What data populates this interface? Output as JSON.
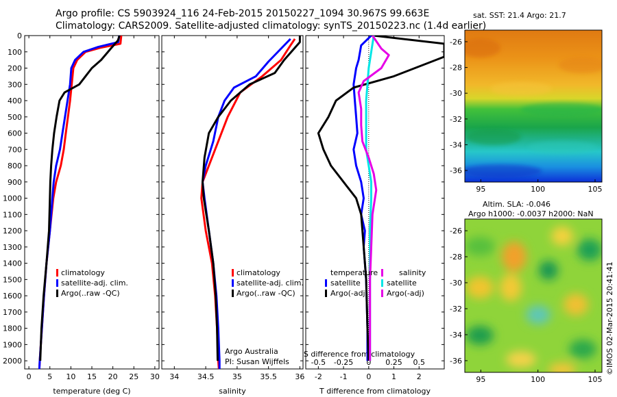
{
  "title": {
    "line1": "Argo profile: CS 5903924_116 24-Feb-2015 20150227_1094 30.967S 99.663E",
    "line2": "Climatology: CARS2009. Satellite-adjusted climatology: synTS_20150223.nc (1.4d earlier)"
  },
  "colors": {
    "climatology": "#ff0000",
    "satellite": "#0000ff",
    "argo": "#000000",
    "sat_salinity": "#00e6e6",
    "argo_salinity": "#e600e6"
  },
  "chart_data": [
    {
      "type": "line",
      "xlabel": "temperature (deg C)",
      "xlim": [
        -1,
        31
      ],
      "xticks": [
        "0",
        "5",
        "10",
        "15",
        "20",
        "25",
        "30"
      ],
      "ylim": [
        2050,
        0
      ],
      "yticks": [
        "0",
        "100",
        "200",
        "300",
        "400",
        "500",
        "600",
        "700",
        "800",
        "900",
        "1000",
        "1100",
        "1200",
        "1300",
        "1400",
        "1500",
        "1600",
        "1700",
        "1800",
        "1900",
        "2000"
      ],
      "legend": [
        "climatology",
        "satellite-adj. clim.",
        "Argo(..raw -QC)"
      ],
      "series": [
        {
          "name": "climatology",
          "color": "#ff0000",
          "points": [
            [
              22,
              0
            ],
            [
              21.8,
              50
            ],
            [
              17,
              75
            ],
            [
              13.5,
              100
            ],
            [
              11.5,
              150
            ],
            [
              10.6,
              200
            ],
            [
              10.2,
              300
            ],
            [
              9.8,
              400
            ],
            [
              9.3,
              500
            ],
            [
              8.8,
              600
            ],
            [
              8.3,
              700
            ],
            [
              7.6,
              800
            ],
            [
              6.5,
              900
            ],
            [
              5.8,
              1000
            ],
            [
              5.0,
              1200
            ],
            [
              4.2,
              1400
            ],
            [
              3.6,
              1600
            ],
            [
              3.1,
              1800
            ],
            [
              2.6,
              2000
            ],
            [
              2.5,
              2050
            ]
          ]
        },
        {
          "name": "satellite-adj. clim.",
          "color": "#0000ff",
          "points": [
            [
              21.5,
              0
            ],
            [
              21.3,
              40
            ],
            [
              16.5,
              70
            ],
            [
              13,
              100
            ],
            [
              11,
              150
            ],
            [
              10.1,
              200
            ],
            [
              9.8,
              300
            ],
            [
              9.2,
              400
            ],
            [
              8.6,
              500
            ],
            [
              8.0,
              600
            ],
            [
              7.4,
              700
            ],
            [
              6.5,
              800
            ],
            [
              5.9,
              900
            ],
            [
              5.6,
              1000
            ],
            [
              5.0,
              1200
            ],
            [
              4.2,
              1400
            ],
            [
              3.6,
              1600
            ],
            [
              3.1,
              1800
            ],
            [
              2.6,
              2000
            ],
            [
              2.5,
              2050
            ]
          ]
        },
        {
          "name": "Argo(..raw -QC)",
          "color": "#000000",
          "points": [
            [
              21.6,
              0
            ],
            [
              21.2,
              30
            ],
            [
              19.5,
              80
            ],
            [
              17.2,
              150
            ],
            [
              15,
              200
            ],
            [
              12,
              300
            ],
            [
              8.5,
              350
            ],
            [
              7.3,
              400
            ],
            [
              6.6,
              500
            ],
            [
              6.0,
              600
            ],
            [
              5.6,
              700
            ],
            [
              5.3,
              800
            ],
            [
              5.1,
              900
            ],
            [
              5.0,
              1000
            ],
            [
              4.8,
              1200
            ],
            [
              4.2,
              1400
            ],
            [
              3.5,
              1600
            ],
            [
              3.0,
              1800
            ],
            [
              2.7,
              2000
            ]
          ]
        }
      ]
    },
    {
      "type": "line",
      "xlabel": "salinity",
      "xlim": [
        33.8,
        36.05
      ],
      "xticks": [
        "34",
        "34.5",
        "35",
        "35.5",
        "36"
      ],
      "ylim": [
        2050,
        0
      ],
      "legend": [
        "climatology",
        "satellite-adj. clim.",
        "Argo(..raw -QC)"
      ],
      "annotations": [
        "Argo Australia",
        "PI: Susan Wijffels"
      ],
      "series": [
        {
          "name": "climatology",
          "color": "#ff0000",
          "points": [
            [
              35.92,
              20
            ],
            [
              35.85,
              60
            ],
            [
              35.7,
              150
            ],
            [
              35.4,
              250
            ],
            [
              35.05,
              350
            ],
            [
              34.85,
              500
            ],
            [
              34.7,
              650
            ],
            [
              34.55,
              800
            ],
            [
              34.45,
              900
            ],
            [
              34.43,
              1000
            ],
            [
              34.5,
              1200
            ],
            [
              34.6,
              1400
            ],
            [
              34.65,
              1600
            ],
            [
              34.68,
              1800
            ],
            [
              34.7,
              2000
            ],
            [
              34.71,
              2050
            ]
          ]
        },
        {
          "name": "satellite-adj. clim.",
          "color": "#0000ff",
          "points": [
            [
              35.85,
              20
            ],
            [
              35.7,
              80
            ],
            [
              35.5,
              160
            ],
            [
              35.3,
              250
            ],
            [
              34.95,
              320
            ],
            [
              34.8,
              400
            ],
            [
              34.7,
              500
            ],
            [
              34.62,
              650
            ],
            [
              34.5,
              800
            ],
            [
              34.45,
              900
            ],
            [
              34.48,
              1000
            ],
            [
              34.55,
              1200
            ],
            [
              34.62,
              1400
            ],
            [
              34.67,
              1600
            ],
            [
              34.7,
              1800
            ],
            [
              34.72,
              2000
            ],
            [
              34.72,
              2050
            ]
          ]
        },
        {
          "name": "Argo(..raw -QC)",
          "color": "#000000",
          "points": [
            [
              36.0,
              0
            ],
            [
              36.0,
              40
            ],
            [
              35.75,
              150
            ],
            [
              35.6,
              230
            ],
            [
              35.2,
              300
            ],
            [
              34.9,
              400
            ],
            [
              34.7,
              500
            ],
            [
              34.55,
              600
            ],
            [
              34.48,
              750
            ],
            [
              34.45,
              900
            ],
            [
              34.47,
              1000
            ],
            [
              34.55,
              1200
            ],
            [
              34.62,
              1400
            ],
            [
              34.66,
              1600
            ],
            [
              34.68,
              1800
            ],
            [
              34.69,
              2000
            ]
          ]
        }
      ]
    },
    {
      "type": "line",
      "xlabel": "T difference from climatology",
      "xlabel_top": "S difference from climatology",
      "xlim": [
        -2.5,
        3.0
      ],
      "xticks": [
        "-2",
        "-1",
        "0",
        "1",
        "2"
      ],
      "xticks_salinity": [
        "-0.5",
        "-0.25",
        "0",
        "0.25",
        "0.5"
      ],
      "ylim": [
        2050,
        0
      ],
      "legend_temperature": [
        "temperature",
        "satellite",
        "Argo(-adj)"
      ],
      "legend_salinity": [
        "salinity",
        "satellite",
        "Argo(-adj)"
      ],
      "series": [
        {
          "name": "satellite",
          "color": "#0000ff",
          "points": [
            [
              0.1,
              0
            ],
            [
              -0.3,
              60
            ],
            [
              -0.4,
              150
            ],
            [
              -0.5,
              200
            ],
            [
              -0.6,
              300
            ],
            [
              -0.55,
              400
            ],
            [
              -0.5,
              500
            ],
            [
              -0.45,
              600
            ],
            [
              -0.6,
              700
            ],
            [
              -0.5,
              800
            ],
            [
              -0.3,
              900
            ],
            [
              -0.2,
              1000
            ],
            [
              -0.3,
              1100
            ],
            [
              -0.15,
              1200
            ],
            [
              -0.2,
              1300
            ],
            [
              -0.1,
              1500
            ],
            [
              -0.05,
              1800
            ],
            [
              -0.05,
              2000
            ]
          ]
        },
        {
          "name": "Argo(-adj)",
          "color": "#000000",
          "points": [
            [
              0.2,
              0
            ],
            [
              3.0,
              50
            ],
            [
              3.0,
              130
            ],
            [
              1.0,
              250
            ],
            [
              -0.6,
              320
            ],
            [
              -1.3,
              400
            ],
            [
              -1.6,
              500
            ],
            [
              -2.0,
              600
            ],
            [
              -1.8,
              700
            ],
            [
              -1.5,
              800
            ],
            [
              -1.0,
              900
            ],
            [
              -0.5,
              1000
            ],
            [
              -0.3,
              1100
            ],
            [
              -0.2,
              1300
            ],
            [
              -0.1,
              1500
            ],
            [
              -0.05,
              1800
            ],
            [
              0,
              2000
            ]
          ]
        },
        {
          "name": "satellite",
          "color": "#00e6e6",
          "points": [
            [
              0.2,
              0
            ],
            [
              0.1,
              100
            ],
            [
              0,
              200
            ],
            [
              -0.05,
              300
            ],
            [
              -0.1,
              400
            ],
            [
              -0.1,
              500
            ],
            [
              -0.1,
              600
            ],
            [
              -0.1,
              700
            ],
            [
              0,
              800
            ],
            [
              0.1,
              900
            ],
            [
              0.1,
              1000
            ],
            [
              0.05,
              1200
            ],
            [
              0.05,
              1500
            ],
            [
              0.05,
              1800
            ],
            [
              0.05,
              2000
            ]
          ]
        },
        {
          "name": "Argo(-adj)",
          "color": "#e600e6",
          "points": [
            [
              0.15,
              0
            ],
            [
              0.5,
              80
            ],
            [
              0.8,
              120
            ],
            [
              0.5,
              200
            ],
            [
              -0.2,
              280
            ],
            [
              -0.4,
              350
            ],
            [
              -0.3,
              450
            ],
            [
              -0.3,
              550
            ],
            [
              -0.25,
              650
            ],
            [
              0,
              750
            ],
            [
              0.2,
              850
            ],
            [
              0.3,
              950
            ],
            [
              0.15,
              1100
            ],
            [
              0.1,
              1300
            ],
            [
              0.05,
              1500
            ],
            [
              0.05,
              1800
            ],
            [
              0.05,
              2000
            ]
          ]
        }
      ]
    },
    {
      "type": "heatmap",
      "title": "sat. SST: 21.4  Argo: 21.7",
      "xticks": [
        "95",
        "100",
        "105"
      ],
      "yticks": [
        "-26",
        "-28",
        "-30",
        "-32",
        "-34",
        "-36"
      ],
      "xlim": [
        93.6,
        105.6
      ],
      "ylim": [
        -36.9,
        -25.1
      ]
    },
    {
      "type": "heatmap",
      "title_lines": [
        "Altim. SLA: -0.046",
        "Argo h1000: -0.0037 h2000: NaN"
      ],
      "xticks": [
        "95",
        "100",
        "105"
      ],
      "yticks": [
        "-26",
        "-28",
        "-30",
        "-32",
        "-34",
        "-36"
      ],
      "xlim": [
        93.6,
        105.6
      ],
      "ylim": [
        -36.9,
        -25.1
      ]
    }
  ],
  "footer": "©IMOS 02-Mar-2015 20:41:41"
}
